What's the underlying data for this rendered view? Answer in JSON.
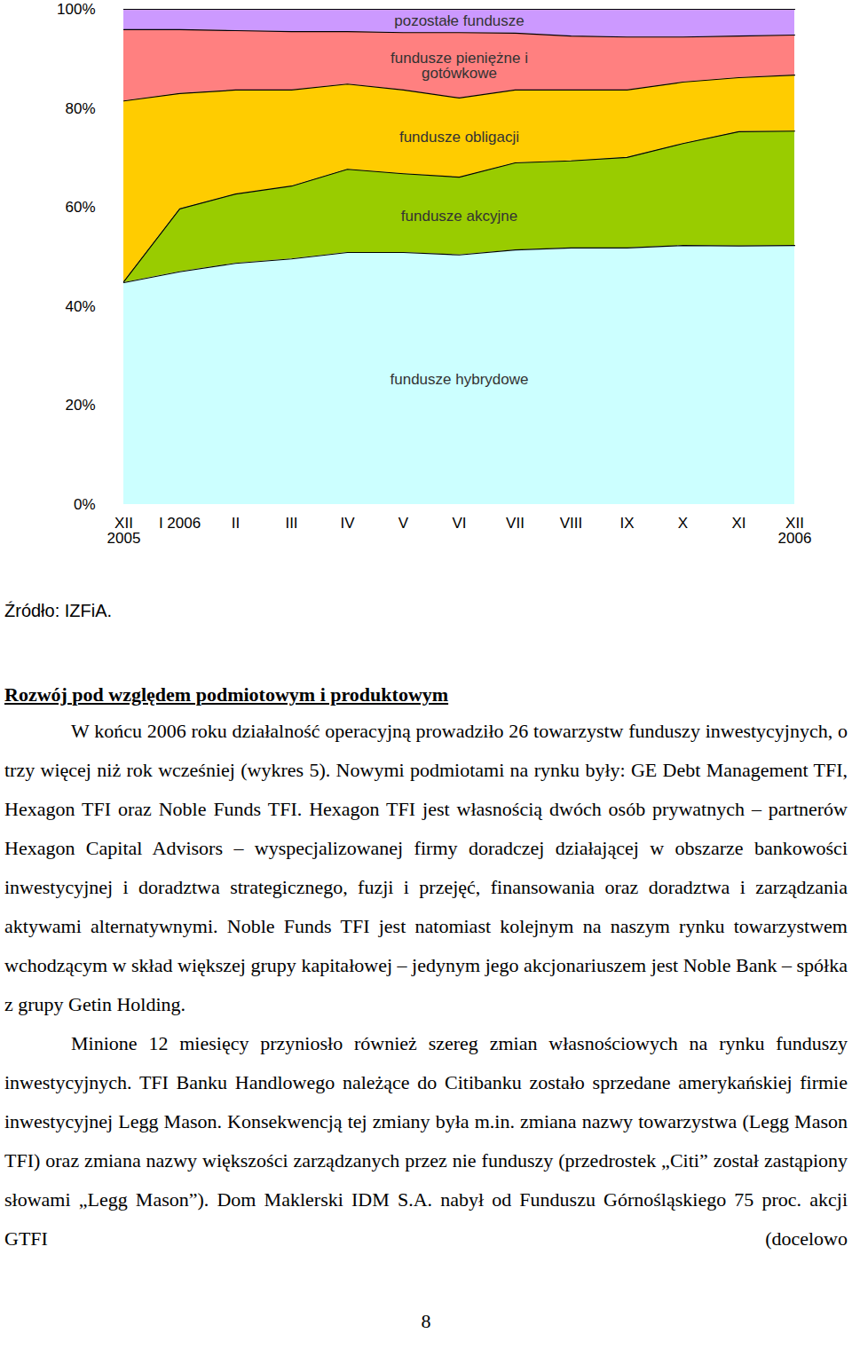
{
  "chart_data": {
    "type": "area",
    "stacked": true,
    "categories": [
      "XII\n2005",
      "I 2006",
      "II",
      "III",
      "IV",
      "V",
      "VI",
      "VII",
      "VIII",
      "IX",
      "X",
      "XI",
      "XII\n2006"
    ],
    "series": [
      {
        "name": "fundusze hybrydowe",
        "color": "#ccffff",
        "values": [
          44.8,
          47.0,
          48.7,
          49.6,
          50.9,
          50.9,
          50.4,
          51.4,
          51.8,
          51.8,
          52.3,
          52.2,
          52.3
        ]
      },
      {
        "name": "fundusze akcyjne",
        "color": "#99cc00",
        "values": [
          0.2,
          12.7,
          14.0,
          14.7,
          16.8,
          15.9,
          15.7,
          17.6,
          17.6,
          18.3,
          20.6,
          23.1,
          23.1
        ]
      },
      {
        "name": "fundusze obligacji",
        "color": "#ffcc00",
        "values": [
          36.5,
          23.3,
          21.0,
          19.4,
          17.2,
          16.9,
          16.0,
          14.7,
          14.3,
          13.6,
          12.4,
          10.9,
          11.3
        ]
      },
      {
        "name": "fundusze pieniężne i gotówkowe",
        "color": "#ff8080",
        "values": [
          14.4,
          12.9,
          12.0,
          11.8,
          10.6,
          11.6,
          13.2,
          11.5,
          10.9,
          10.7,
          9.1,
          8.4,
          8.1
        ]
      },
      {
        "name": "pozostałe fundusze",
        "color": "#cc99ff",
        "values": [
          4.1,
          4.1,
          4.3,
          4.5,
          4.5,
          4.7,
          4.7,
          4.8,
          5.4,
          5.6,
          5.6,
          5.4,
          5.2
        ]
      }
    ],
    "ylim": [
      0,
      100
    ],
    "yticks": [
      {
        "value": 0,
        "label": "0%"
      },
      {
        "value": 20,
        "label": "20%"
      },
      {
        "value": 40,
        "label": "40%"
      },
      {
        "value": 60,
        "label": "60%"
      },
      {
        "value": 80,
        "label": "80%"
      },
      {
        "value": 100,
        "label": "100%"
      }
    ],
    "grid": false
  },
  "source": "Źródło: IZFiA.",
  "heading": "Rozwój pod względem podmiotowym i produktowym",
  "paragraphs": [
    "W końcu 2006 roku działalność operacyjną prowadziło 26 towarzystw funduszy inwestycyjnych, o trzy więcej niż rok wcześniej (wykres 5). Nowymi podmiotami na rynku były: GE Debt Management TFI, Hexagon TFI oraz Noble Funds TFI. Hexagon TFI jest własnością dwóch osób prywatnych – partnerów Hexagon Capital Advisors – wyspecjalizowanej firmy doradczej działającej w obszarze bankowości inwestycyjnej i doradztwa strategicznego, fuzji i przejęć, finansowania oraz doradztwa i zarządzania aktywami alternatywnymi. Noble Funds TFI jest natomiast kolejnym na naszym rynku towarzystwem wchodzącym w skład większej grupy kapitałowej – jedynym jego akcjonariuszem jest Noble Bank – spółka z grupy Getin Holding.",
    "Minione 12 miesięcy przyniosło również szereg zmian własnościowych na rynku funduszy inwestycyjnych. TFI Banku Handlowego należące do Citibanku zostało sprzedane amerykańskiej firmie inwestycyjnej Legg Mason. Konsekwencją tej zmiany była m.in. zmiana nazwy towarzystwa (Legg Mason TFI) oraz zmiana nazwy większości zarządzanych przez nie funduszy (przedrostek „Citi” został zastąpiony słowami „Legg Mason”). Dom Maklerski IDM S.A. nabył od Funduszu Górnośląskiego 75 proc. akcji GTFI (docelowo"
  ],
  "page_number": "8"
}
